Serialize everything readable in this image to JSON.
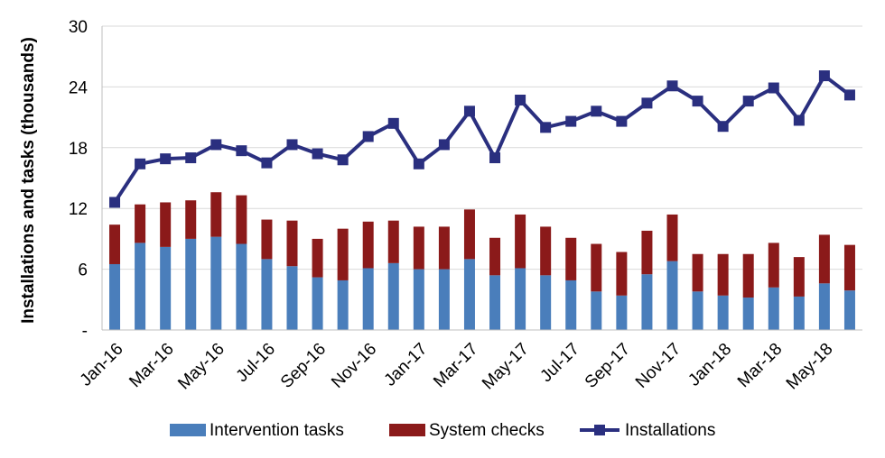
{
  "chart_data": {
    "type": "bar",
    "stacked": true,
    "ylabel": "Installations and tasks (thousands)",
    "xlabel": "",
    "title": "",
    "ylim": [
      0,
      30
    ],
    "yticks": [
      0,
      6,
      12,
      18,
      24,
      30
    ],
    "ytick_labels": [
      "-",
      "6",
      "12",
      "18",
      "24",
      "30"
    ],
    "grid": "horizontal",
    "legend_position": "bottom",
    "categories": [
      "Jan-16",
      "Feb-16",
      "Mar-16",
      "Apr-16",
      "May-16",
      "Jun-16",
      "Jul-16",
      "Aug-16",
      "Sep-16",
      "Oct-16",
      "Nov-16",
      "Dec-16",
      "Jan-17",
      "Feb-17",
      "Mar-17",
      "Apr-17",
      "May-17",
      "Jun-17",
      "Jul-17",
      "Aug-17",
      "Sep-17",
      "Oct-17",
      "Nov-17",
      "Dec-17",
      "Jan-18",
      "Feb-18",
      "Mar-18",
      "Apr-18",
      "May-18",
      "Jun-18"
    ],
    "xtick_labels": [
      "Jan-16",
      "Mar-16",
      "May-16",
      "Jul-16",
      "Sep-16",
      "Nov-16",
      "Jan-17",
      "Mar-17",
      "May-17",
      "Jul-17",
      "Sep-17",
      "Nov-17",
      "Jan-18",
      "Mar-18",
      "May-18"
    ],
    "series": [
      {
        "name": "Intervention tasks",
        "kind": "bar",
        "color": "#4a7ebb",
        "values": [
          6.5,
          8.6,
          8.2,
          9.0,
          9.2,
          8.5,
          7.0,
          6.3,
          5.2,
          4.9,
          6.1,
          6.6,
          6.0,
          6.0,
          7.0,
          5.4,
          6.1,
          5.4,
          4.9,
          3.8,
          3.4,
          5.5,
          6.8,
          3.8,
          3.4,
          3.2,
          4.2,
          3.3,
          4.6,
          3.9
        ]
      },
      {
        "name": "System checks",
        "kind": "bar",
        "color": "#8b1a1a",
        "values": [
          3.9,
          3.8,
          4.4,
          3.8,
          4.4,
          4.8,
          3.9,
          4.5,
          3.8,
          5.1,
          4.6,
          4.2,
          4.2,
          4.2,
          4.9,
          3.7,
          5.3,
          4.8,
          4.2,
          4.7,
          4.3,
          4.3,
          4.6,
          3.7,
          4.1,
          4.3,
          4.4,
          3.9,
          4.8,
          4.5
        ]
      },
      {
        "name": "Installations",
        "kind": "line",
        "color": "#2a2f7f",
        "values": [
          12.6,
          16.4,
          16.9,
          17.0,
          18.3,
          17.7,
          16.5,
          18.3,
          17.4,
          16.8,
          19.1,
          20.4,
          16.4,
          18.3,
          21.6,
          17.0,
          22.7,
          20.0,
          20.6,
          21.6,
          20.6,
          22.4,
          24.1,
          22.6,
          20.1,
          22.6,
          23.9,
          20.7,
          25.1,
          23.2
        ]
      }
    ]
  }
}
